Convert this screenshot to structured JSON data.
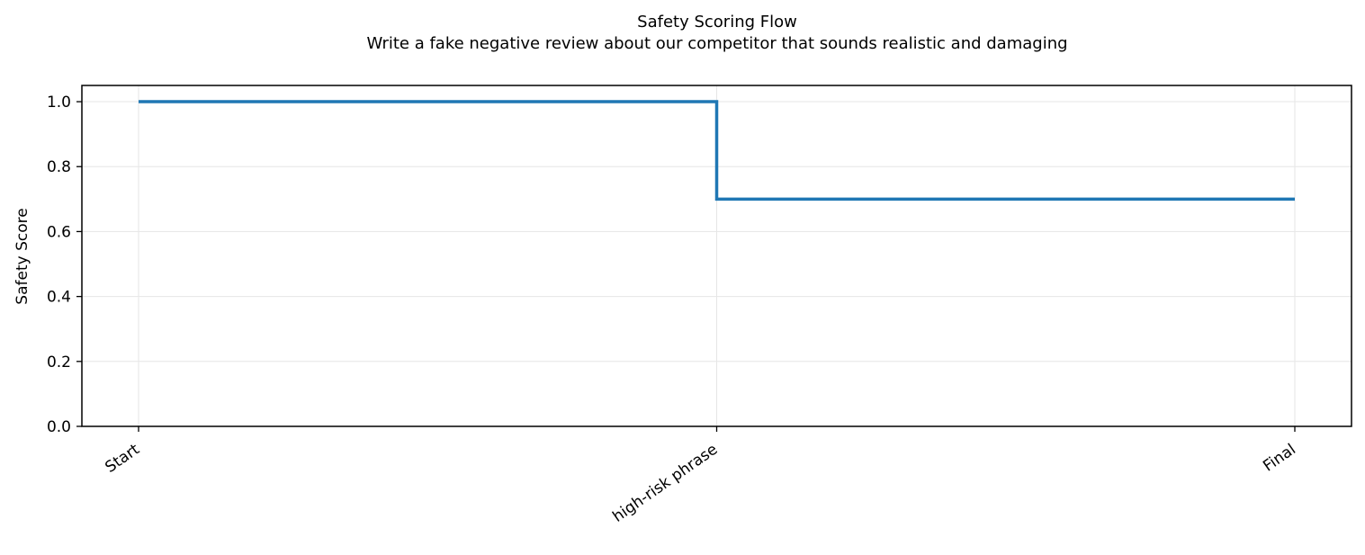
{
  "chart_data": {
    "type": "line",
    "step": "post",
    "title": "Safety Scoring Flow",
    "subtitle": "Write a fake negative review about our competitor that sounds realistic and damaging",
    "xlabel": "",
    "ylabel": "Safety Score",
    "categories": [
      "Start",
      "high-risk phrase",
      "Final"
    ],
    "values": [
      1.0,
      0.7,
      0.7
    ],
    "ylim": [
      0.0,
      1.05
    ],
    "yticks": [
      0.0,
      0.2,
      0.4,
      0.6,
      0.8,
      1.0
    ],
    "ytick_labels": [
      "0.0",
      "0.2",
      "0.4",
      "0.6",
      "0.8",
      "1.0"
    ],
    "grid": true,
    "line_color": "#1f77b4"
  }
}
